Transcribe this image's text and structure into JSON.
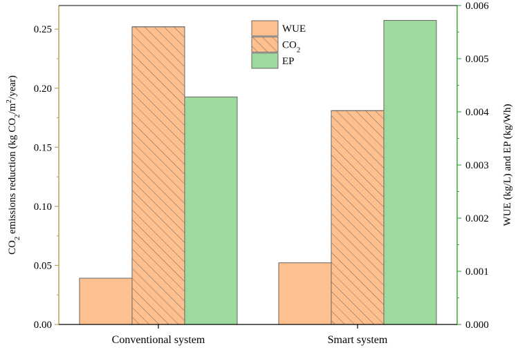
{
  "chart_data": {
    "type": "bar",
    "categories": [
      "Conventional system",
      "Smart system"
    ],
    "series": [
      {
        "name": "WUE",
        "axis": "right",
        "values": [
          0.00087,
          0.00116
        ],
        "color": "#FFC08F",
        "hatch": false
      },
      {
        "name": "CO2",
        "axis": "left",
        "values": [
          0.252,
          0.181
        ],
        "color": "#FFC08F",
        "hatch": true
      },
      {
        "name": "EP",
        "axis": "right",
        "values": [
          0.00428,
          0.00572
        ],
        "color": "#9ED99E",
        "hatch": false
      }
    ],
    "ylabel_left": {
      "pre": "CO",
      "sub1": "2",
      "mid": " emissions reduction (kg CO",
      "sub2": "2",
      "mid2": "/m",
      "sup": "2",
      "post": "/year)"
    },
    "ylabel_right": "WUE (kg/L) and EP (kg/Wh)",
    "ylim_left": [
      0,
      0.27
    ],
    "ylim_right": [
      0,
      0.006
    ],
    "yticks_left": [
      "0.00",
      "0.05",
      "0.10",
      "0.15",
      "0.20",
      "0.25"
    ],
    "yticks_right": [
      "0.000",
      "0.001",
      "0.002",
      "0.003",
      "0.004",
      "0.005",
      "0.006"
    ],
    "legend": {
      "placement": "top-center",
      "entries": [
        {
          "label": "WUE",
          "sub": ""
        },
        {
          "label": "CO",
          "sub": "2"
        },
        {
          "label": "EP",
          "sub": ""
        }
      ]
    },
    "colors": {
      "left_axis": "#B8A25E",
      "right_axis": "#3FA63F",
      "bar_edge": "#666666",
      "hatch": "#666666"
    }
  }
}
